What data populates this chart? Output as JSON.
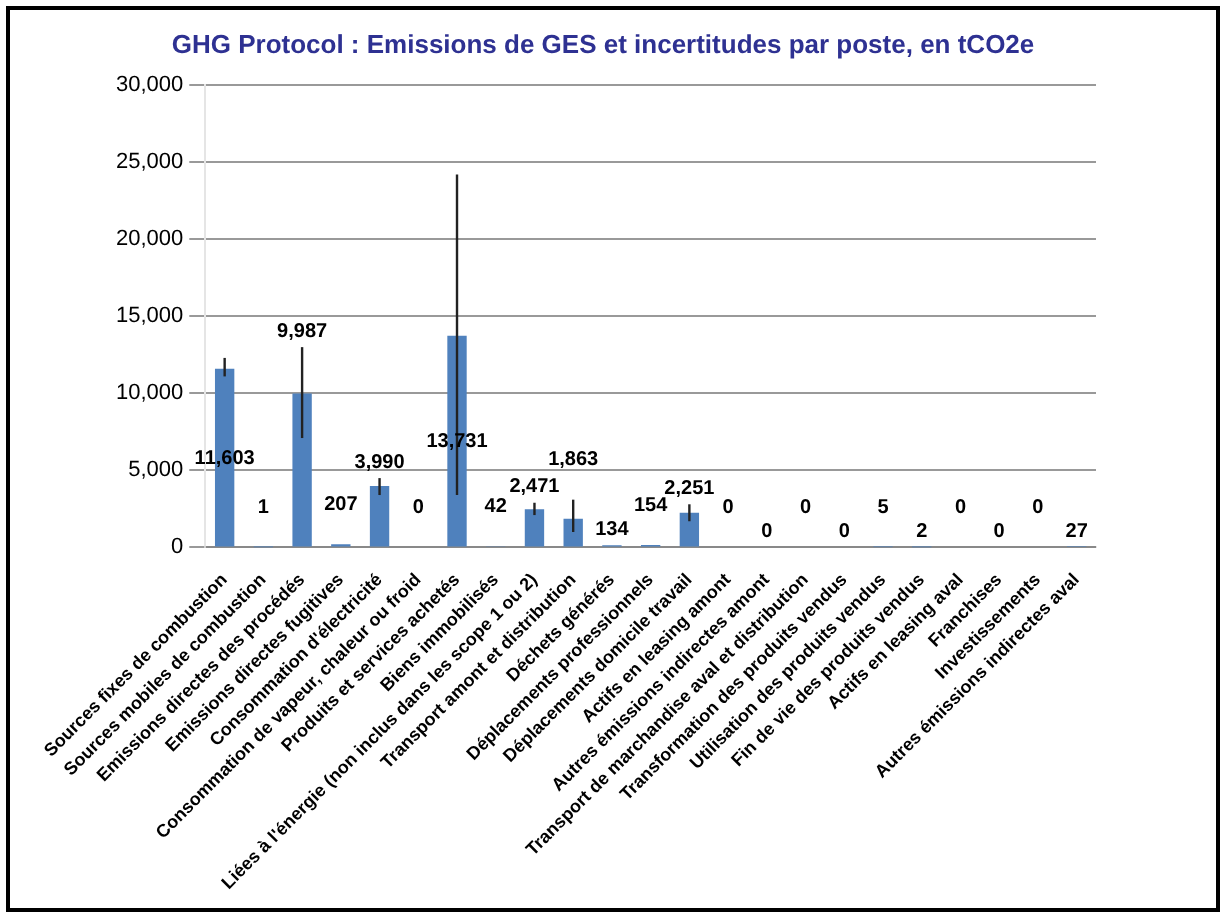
{
  "chart_data": {
    "type": "bar",
    "title": "GHG Protocol : Emissions de GES et incertitudes par poste, en tCO2e",
    "categories": [
      "Sources fixes de combustion",
      "Sources mobiles de combustion",
      "Emissions directes des procédés",
      "Emissions directes fugitives",
      "Consommation d'électricité",
      "Consommation de vapeur, chaleur ou froid",
      "Produits et services achetés",
      "Biens immobilisés",
      "Liées à l'énergie (non inclus dans les scope 1 ou 2)",
      "Transport amont et distribution",
      "Déchets générés",
      "Déplacements professionnels",
      "Déplacements domicile travail",
      "Actifs en leasing amont",
      "Autres émissions indirectes amont",
      "Transport de marchandise aval et distribution",
      "Transformation des produits vendus",
      "Utilisation des produits vendus",
      "Fin de vie des produits vendus",
      "Actifs en leasing aval",
      "Franchises",
      "Investissements",
      "Autres émissions indirectes aval"
    ],
    "values": [
      11603,
      1,
      9987,
      207,
      3990,
      0,
      13731,
      42,
      2471,
      1863,
      134,
      154,
      2251,
      0,
      0,
      0,
      0,
      5,
      2,
      0,
      0,
      0,
      27
    ],
    "errors": [
      [
        11100,
        12300
      ],
      null,
      [
        7100,
        13000
      ],
      null,
      [
        3400,
        4500
      ],
      null,
      [
        3400,
        24200
      ],
      null,
      [
        2100,
        2900
      ],
      [
        1000,
        3100
      ],
      null,
      null,
      [
        1700,
        2800
      ],
      null,
      null,
      null,
      null,
      null,
      null,
      null,
      null,
      null,
      null
    ],
    "color": "#4f81bd",
    "ylim": [
      0,
      30000
    ],
    "yticks": [
      {
        "value": 0,
        "label": "0"
      },
      {
        "value": 5000,
        "label": "5,000"
      },
      {
        "value": 10000,
        "label": "10,000"
      },
      {
        "value": 15000,
        "label": "15,000"
      },
      {
        "value": 20000,
        "label": "20,000"
      },
      {
        "value": 25000,
        "label": "25,000"
      },
      {
        "value": 30000,
        "label": "30,000"
      }
    ],
    "value_labels": [
      "11,603",
      "1",
      "9,987",
      "207",
      "3,990",
      "0",
      "13,731",
      "42",
      "2,471",
      "1,863",
      "134",
      "154",
      "2,251",
      "0",
      "0",
      "0",
      "0",
      "5",
      "2",
      "0",
      "0",
      "0",
      "27"
    ],
    "grid": "y"
  }
}
